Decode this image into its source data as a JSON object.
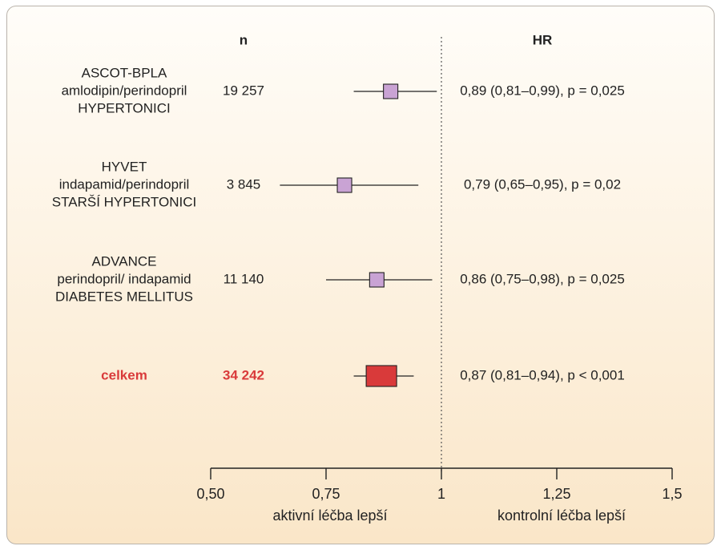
{
  "chart_data": {
    "type": "forest",
    "column_headers": {
      "n": "n",
      "hr": "HR"
    },
    "studies": [
      {
        "label_lines": [
          "ASCOT-BPLA",
          "amlodipin/perindopril",
          "HYPERTONICI"
        ],
        "n": "19 257",
        "hr": 0.89,
        "ci": [
          0.81,
          0.99
        ],
        "text": "0,89 (0,81–0,99), p = 0,025",
        "color": "#c9a3d4",
        "total": false
      },
      {
        "label_lines": [
          "HYVET",
          "indapamid/perindopril",
          "STARŠÍ HYPERTONICI"
        ],
        "n": "3 845",
        "hr": 0.79,
        "ci": [
          0.65,
          0.95
        ],
        "text": "0,79 (0,65–0,95), p = 0,02",
        "color": "#c9a3d4",
        "total": false
      },
      {
        "label_lines": [
          "ADVANCE",
          "perindopril/ indapamid",
          "DIABETES MELLITUS"
        ],
        "n": "11 140",
        "hr": 0.86,
        "ci": [
          0.75,
          0.98
        ],
        "text": "0,86 (0,75–0,98), p = 0,025",
        "color": "#c9a3d4",
        "total": false
      },
      {
        "label_lines": [
          "celkem"
        ],
        "n": "34 242",
        "hr": 0.87,
        "ci": [
          0.81,
          0.94
        ],
        "text": "0,87 (0,81–0,94), p < 0,001",
        "color": "#d93a3a",
        "total": true
      }
    ],
    "x_axis": {
      "range": [
        0.5,
        1.5
      ],
      "ticks": [
        0.5,
        0.75,
        1,
        1.25,
        1.5
      ],
      "tick_labels": [
        "0,50",
        "0,75",
        "1",
        "1,25",
        "1,5"
      ],
      "reference_line": 1
    },
    "side_labels": {
      "left": "aktivní léčba lepší",
      "right": "kontrolní léčba lepší"
    },
    "colors": {
      "total_text": "#d93a3a",
      "study_box": "#c9a3d4",
      "total_box": "#d93a3a"
    }
  }
}
